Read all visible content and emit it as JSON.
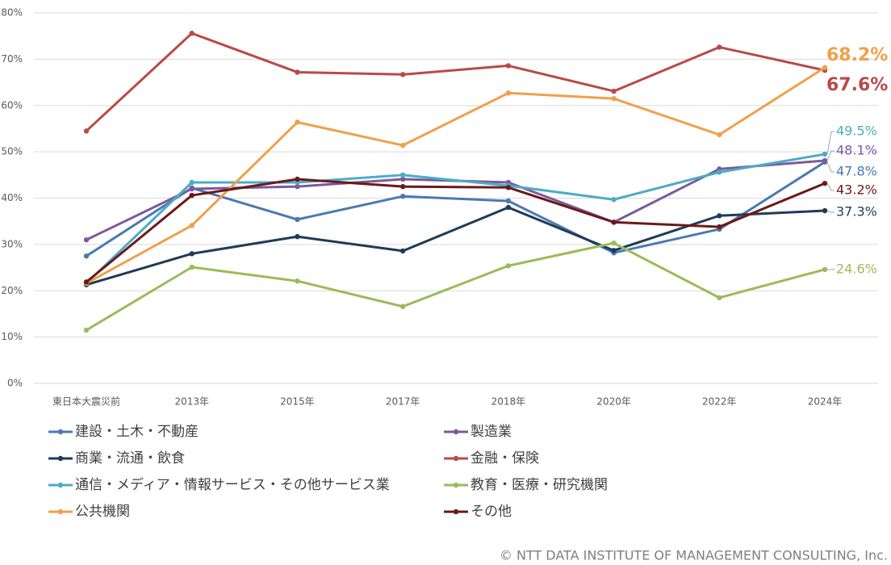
{
  "chart_data": {
    "type": "line",
    "categories": [
      "東日本大震災前",
      "2013年",
      "2015年",
      "2017年",
      "2018年",
      "2020年",
      "2022年",
      "2024年"
    ],
    "ylim": [
      0,
      80
    ],
    "yticks": [
      {
        "value": 0,
        "label": "0%"
      },
      {
        "value": 10,
        "label": "10%"
      },
      {
        "value": 20,
        "label": "20%"
      },
      {
        "value": 30,
        "label": "30%"
      },
      {
        "value": 40,
        "label": "40%"
      },
      {
        "value": 50,
        "label": "50%"
      },
      {
        "value": 60,
        "label": "60%"
      },
      {
        "value": 70,
        "label": "70%"
      },
      {
        "value": 80,
        "label": "80%"
      }
    ],
    "grid": true,
    "series": [
      {
        "name": "建設・土木・不動産",
        "color": "#4a7ab0",
        "values": [
          27.5,
          42.2,
          35.4,
          40.4,
          39.4,
          28.2,
          33.3,
          47.8
        ],
        "value_labels": [
          null,
          null,
          null,
          null,
          null,
          null,
          null,
          "47.8%"
        ]
      },
      {
        "name": "製造業",
        "color": "#7b5a9e",
        "values": [
          31.0,
          42.0,
          42.5,
          44.1,
          43.4,
          34.8,
          46.3,
          48.1
        ],
        "value_labels": [
          null,
          null,
          null,
          null,
          null,
          null,
          null,
          "48.1%"
        ]
      },
      {
        "name": "商業・流通・飲食",
        "color": "#1f3b5a",
        "values": [
          21.3,
          28.0,
          31.7,
          28.6,
          38.0,
          28.7,
          36.2,
          37.3
        ],
        "value_labels": [
          null,
          null,
          null,
          null,
          null,
          null,
          null,
          "37.3%"
        ]
      },
      {
        "name": "金融・保険",
        "color": "#b94a48",
        "values": [
          54.5,
          75.6,
          67.2,
          66.7,
          68.6,
          63.1,
          72.6,
          67.6
        ],
        "value_labels": [
          null,
          null,
          null,
          null,
          null,
          null,
          null,
          "67.6%"
        ]
      },
      {
        "name": "通信・メディア・情報サービス・その他サービス業",
        "color": "#4bacc6",
        "values": [
          21.6,
          43.4,
          43.4,
          45.0,
          42.7,
          39.7,
          45.6,
          49.5
        ],
        "value_labels": [
          null,
          null,
          null,
          null,
          null,
          null,
          null,
          "49.5%"
        ]
      },
      {
        "name": "教育・医療・研究機関",
        "color": "#9bbb59",
        "values": [
          11.5,
          25.1,
          22.1,
          16.6,
          25.4,
          30.3,
          18.5,
          24.6
        ],
        "value_labels": [
          null,
          null,
          null,
          null,
          null,
          null,
          null,
          "24.6%"
        ]
      },
      {
        "name": "公共機関",
        "color": "#f0a04b",
        "values": [
          21.6,
          34.1,
          56.4,
          51.4,
          62.7,
          61.5,
          53.7,
          68.2
        ],
        "value_labels": [
          null,
          null,
          null,
          null,
          null,
          null,
          null,
          "68.2%"
        ]
      },
      {
        "name": "その他",
        "color": "#6b1a1a",
        "values": [
          21.9,
          40.6,
          44.1,
          42.5,
          42.3,
          34.8,
          33.8,
          43.2
        ],
        "value_labels": [
          null,
          null,
          null,
          null,
          null,
          null,
          null,
          "43.2%"
        ]
      }
    ],
    "footer": "© NTT DATA INSTITUTE OF MANAGEMENT CONSULTING, Inc."
  }
}
